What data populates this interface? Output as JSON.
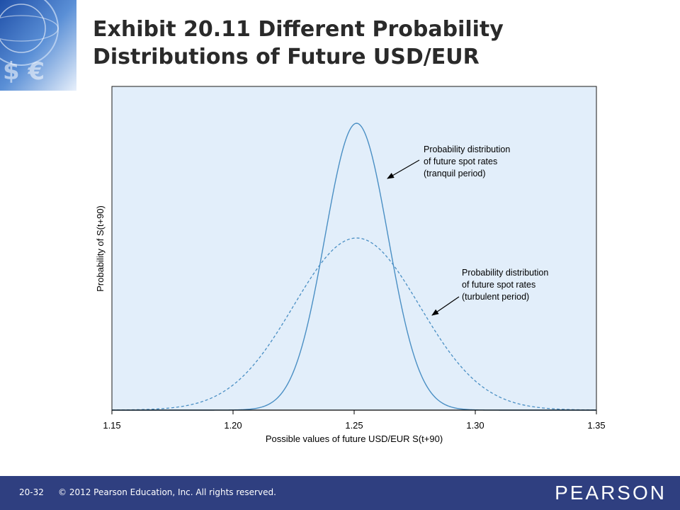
{
  "title": {
    "line1": "Exhibit 20.11  Different Probability",
    "line2": "Distributions of Future USD/EUR"
  },
  "chart_data": {
    "type": "line",
    "xlabel": "Possible values of future USD/EUR S(t+90)",
    "ylabel": "Probability of S(t+90)",
    "xlim": [
      1.15,
      1.35
    ],
    "x_ticks": [
      "1.15",
      "1.20",
      "1.25",
      "1.30",
      "1.35"
    ],
    "grid": false,
    "series": [
      {
        "name": "Probability distribution of future spot rates (tranquil period)",
        "style": "solid",
        "mean": 1.251,
        "std": 0.013,
        "relative_peak": 1.0
      },
      {
        "name": "Probability distribution of future spot rates (turbulent period)",
        "style": "dashed",
        "mean": 1.251,
        "std": 0.026,
        "relative_peak": 0.6
      }
    ],
    "annotations": [
      {
        "series": 0,
        "lines": [
          "Probability distribution",
          "of future spot rates",
          "(tranquil period)"
        ]
      },
      {
        "series": 1,
        "lines": [
          "Probability distribution",
          "of future spot rates",
          "(turbulent period)"
        ]
      }
    ],
    "colors": {
      "plot_background": "#e2eefa",
      "line": "#4a8fc4",
      "axis": "#000000"
    }
  },
  "footer": {
    "slide_number": "20-32",
    "copyright": "© 2012 Pearson Education, Inc. All rights reserved.",
    "logo": "PEARSON",
    "background": "#2f3f80"
  }
}
